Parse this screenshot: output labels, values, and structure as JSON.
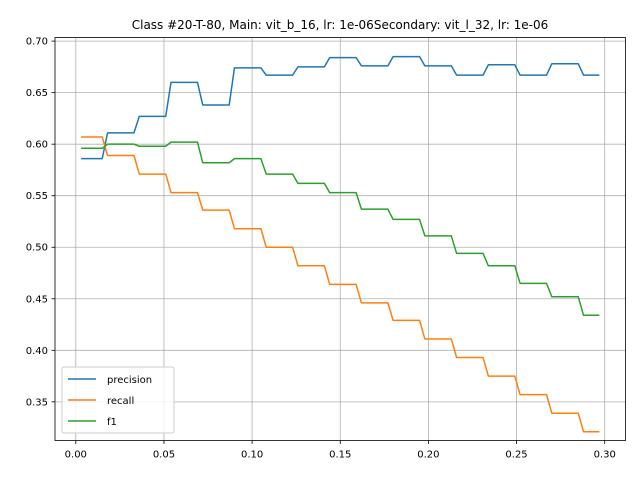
{
  "chart_data": {
    "type": "line",
    "title": "Class #20-T-80, Main: vit_b_16, lr: 1e-06Secondary: vit_l_32, lr: 1e-06",
    "xlabel": "",
    "ylabel": "",
    "xlim": [
      -0.0118,
      0.3118
    ],
    "ylim": [
      0.3125,
      0.7035
    ],
    "x_ticks": [
      0.0,
      0.05,
      0.1,
      0.15,
      0.2,
      0.25,
      0.3
    ],
    "x_tick_labels": [
      "0.00",
      "0.05",
      "0.10",
      "0.15",
      "0.20",
      "0.25",
      "0.30"
    ],
    "y_ticks": [
      0.35,
      0.4,
      0.45,
      0.5,
      0.55,
      0.6,
      0.65,
      0.7
    ],
    "y_tick_labels": [
      "0.35",
      "0.40",
      "0.45",
      "0.50",
      "0.55",
      "0.60",
      "0.65",
      "0.70"
    ],
    "grid": true,
    "legend_position": "lower-left",
    "x": [
      0.003,
      0.012,
      0.015,
      0.018,
      0.021,
      0.03,
      0.033,
      0.036,
      0.039,
      0.048,
      0.051,
      0.054,
      0.057,
      0.066,
      0.069,
      0.072,
      0.075,
      0.084,
      0.087,
      0.09,
      0.093,
      0.102,
      0.105,
      0.108,
      0.111,
      0.12,
      0.123,
      0.126,
      0.129,
      0.138,
      0.141,
      0.144,
      0.147,
      0.156,
      0.159,
      0.162,
      0.165,
      0.174,
      0.177,
      0.18,
      0.183,
      0.192,
      0.195,
      0.198,
      0.201,
      0.21,
      0.213,
      0.216,
      0.219,
      0.228,
      0.231,
      0.234,
      0.237,
      0.246,
      0.249,
      0.252,
      0.255,
      0.264,
      0.267,
      0.27,
      0.273,
      0.282,
      0.285,
      0.288,
      0.291,
      0.297
    ],
    "series": [
      {
        "name": "precision",
        "color": "#1f77b4",
        "values": [
          0.586,
          0.586,
          0.586,
          0.611,
          0.611,
          0.611,
          0.611,
          0.627,
          0.627,
          0.627,
          0.627,
          0.66,
          0.66,
          0.66,
          0.66,
          0.638,
          0.638,
          0.638,
          0.638,
          0.674,
          0.674,
          0.674,
          0.674,
          0.667,
          0.667,
          0.667,
          0.667,
          0.675,
          0.675,
          0.675,
          0.675,
          0.684,
          0.684,
          0.684,
          0.684,
          0.676,
          0.676,
          0.676,
          0.676,
          0.685,
          0.685,
          0.685,
          0.685,
          0.676,
          0.676,
          0.676,
          0.676,
          0.667,
          0.667,
          0.667,
          0.667,
          0.677,
          0.677,
          0.677,
          0.677,
          0.667,
          0.667,
          0.667,
          0.667,
          0.678,
          0.678,
          0.678,
          0.678,
          0.667,
          0.667,
          0.667
        ]
      },
      {
        "name": "recall",
        "color": "#ff7f0e",
        "values": [
          0.607,
          0.607,
          0.607,
          0.589,
          0.589,
          0.589,
          0.589,
          0.571,
          0.571,
          0.571,
          0.571,
          0.553,
          0.553,
          0.553,
          0.553,
          0.536,
          0.536,
          0.536,
          0.536,
          0.518,
          0.518,
          0.518,
          0.518,
          0.5,
          0.5,
          0.5,
          0.5,
          0.482,
          0.482,
          0.482,
          0.482,
          0.464,
          0.464,
          0.464,
          0.464,
          0.446,
          0.446,
          0.446,
          0.446,
          0.429,
          0.429,
          0.429,
          0.429,
          0.411,
          0.411,
          0.411,
          0.411,
          0.393,
          0.393,
          0.393,
          0.393,
          0.375,
          0.375,
          0.375,
          0.375,
          0.357,
          0.357,
          0.357,
          0.357,
          0.339,
          0.339,
          0.339,
          0.339,
          0.321,
          0.321,
          0.321
        ]
      },
      {
        "name": "f1",
        "color": "#2ca02c",
        "values": [
          0.596,
          0.596,
          0.596,
          0.6,
          0.6,
          0.6,
          0.6,
          0.598,
          0.598,
          0.598,
          0.598,
          0.602,
          0.602,
          0.602,
          0.602,
          0.582,
          0.582,
          0.582,
          0.582,
          0.586,
          0.586,
          0.586,
          0.586,
          0.571,
          0.571,
          0.571,
          0.571,
          0.562,
          0.562,
          0.562,
          0.562,
          0.553,
          0.553,
          0.553,
          0.553,
          0.537,
          0.537,
          0.537,
          0.537,
          0.527,
          0.527,
          0.527,
          0.527,
          0.511,
          0.511,
          0.511,
          0.511,
          0.494,
          0.494,
          0.494,
          0.494,
          0.482,
          0.482,
          0.482,
          0.482,
          0.465,
          0.465,
          0.465,
          0.465,
          0.452,
          0.452,
          0.452,
          0.452,
          0.434,
          0.434,
          0.434
        ]
      }
    ]
  }
}
